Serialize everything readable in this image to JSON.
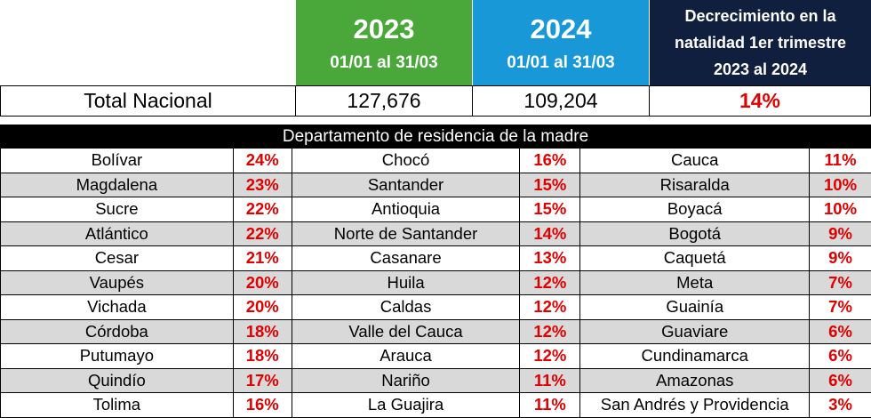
{
  "header": {
    "col_2023_year": "2023",
    "col_2023_range": "01/01 al 31/03",
    "col_2024_year": "2024",
    "col_2024_range": "01/01 al 31/03",
    "decrease_line1": "Decrecimiento en la",
    "decrease_line2": "natalidad 1er trimestre",
    "decrease_line3": "2023 al 2024"
  },
  "total": {
    "label": "Total Nacional",
    "value_2023": "127,676",
    "value_2024": "109,204",
    "decrease": "14%"
  },
  "section_title": "Departamento de residencia de la madre",
  "rows": [
    {
      "a": "Bolívar",
      "ap": "24%",
      "b": "Chocó",
      "bp": "16%",
      "c": "Cauca",
      "cp": "11%"
    },
    {
      "a": "Magdalena",
      "ap": "23%",
      "b": "Santander",
      "bp": "15%",
      "c": "Risaralda",
      "cp": "10%"
    },
    {
      "a": "Sucre",
      "ap": "22%",
      "b": "Antioquia",
      "bp": "15%",
      "c": "Boyacá",
      "cp": "10%"
    },
    {
      "a": "Atlántico",
      "ap": "22%",
      "b": "Norte de Santander",
      "bp": "14%",
      "c": "Bogotá",
      "cp": "9%"
    },
    {
      "a": "Cesar",
      "ap": "21%",
      "b": "Casanare",
      "bp": "13%",
      "c": "Caquetá",
      "cp": "9%"
    },
    {
      "a": "Vaupés",
      "ap": "20%",
      "b": "Huila",
      "bp": "12%",
      "c": "Meta",
      "cp": "7%"
    },
    {
      "a": "Vichada",
      "ap": "20%",
      "b": "Caldas",
      "bp": "12%",
      "c": "Guainía",
      "cp": "7%"
    },
    {
      "a": "Córdoba",
      "ap": "18%",
      "b": "Valle del Cauca",
      "bp": "12%",
      "c": "Guaviare",
      "cp": "6%"
    },
    {
      "a": "Putumayo",
      "ap": "18%",
      "b": "Arauca",
      "bp": "12%",
      "c": "Cundinamarca",
      "cp": "6%"
    },
    {
      "a": "Quindío",
      "ap": "17%",
      "b": "Nariño",
      "bp": "11%",
      "c": "Amazonas",
      "cp": "6%"
    },
    {
      "a": "Tolima",
      "ap": "16%",
      "b": "La Guajira",
      "bp": "11%",
      "c": "San Andrés y Providencia",
      "cp": "3%"
    }
  ]
}
